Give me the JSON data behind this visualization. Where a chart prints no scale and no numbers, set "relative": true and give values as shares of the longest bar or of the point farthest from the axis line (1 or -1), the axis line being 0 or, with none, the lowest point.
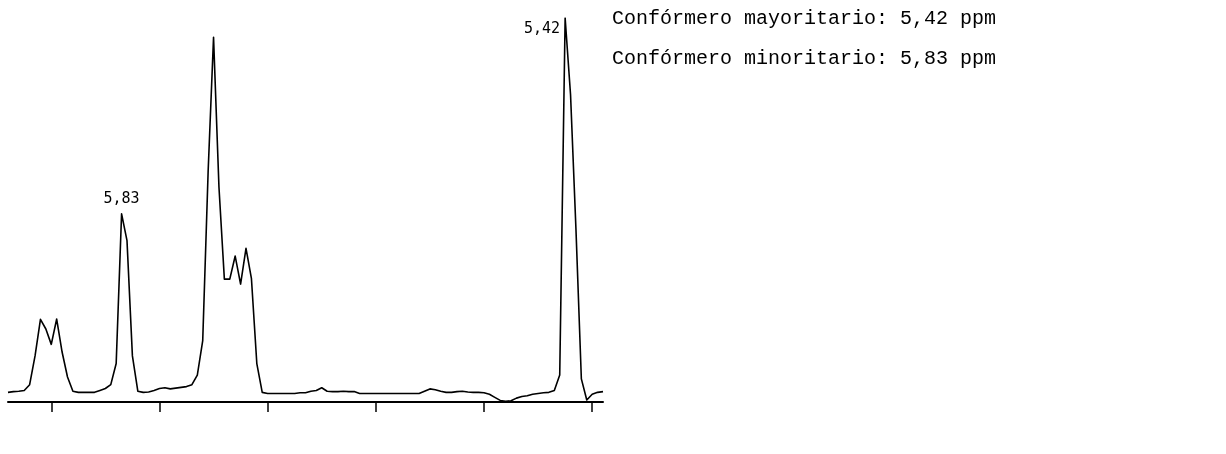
{
  "chart_data": {
    "type": "line",
    "relative": true,
    "categories": [
      null,
      null,
      null,
      null,
      null,
      null,
      null,
      null,
      null,
      null,
      null,
      null,
      null,
      null,
      null,
      null,
      null,
      null,
      null,
      null,
      null,
      null,
      null,
      null,
      null,
      null,
      null,
      null,
      null,
      null,
      null,
      null,
      null,
      null,
      null,
      null,
      null,
      null,
      null,
      null,
      null,
      null,
      null,
      null,
      null,
      null,
      null,
      null,
      null,
      null,
      null,
      null,
      null,
      null,
      null,
      null,
      null,
      null,
      null,
      null,
      null,
      null,
      null,
      null,
      null,
      null,
      null,
      null,
      null,
      null,
      null,
      null,
      null,
      null,
      null,
      null,
      null,
      null,
      null,
      null,
      null,
      null,
      null,
      null,
      null,
      null,
      null,
      null,
      null,
      null,
      null,
      null,
      null,
      null,
      null,
      null,
      null,
      null,
      null,
      null,
      null,
      null,
      null,
      null,
      null,
      null,
      null,
      null,
      null,
      null,
      null
    ],
    "series": [
      {
        "color": "#000000",
        "values": [
          0.025,
          0.027,
          0.028,
          0.03,
          0.045,
          0.12,
          0.215,
          0.19,
          0.15,
          0.216,
          0.13,
          0.065,
          0.028,
          0.025,
          0.025,
          0.025,
          0.025,
          0.03,
          0.035,
          0.045,
          0.1,
          0.49,
          0.42,
          0.12,
          0.028,
          0.025,
          0.026,
          0.03,
          0.035,
          0.037,
          0.034,
          0.036,
          0.038,
          0.04,
          0.045,
          0.07,
          0.16,
          0.6,
          0.95,
          0.56,
          0.32,
          0.32,
          0.38,
          0.307,
          0.4,
          0.322,
          0.1,
          0.025,
          0.022,
          0.022,
          0.022,
          0.022,
          0.022,
          0.022,
          0.024,
          0.024,
          0.028,
          0.03,
          0.037,
          0.028,
          0.027,
          0.027,
          0.028,
          0.027,
          0.027,
          0.022,
          0.022,
          0.022,
          0.022,
          0.022,
          0.022,
          0.022,
          0.022,
          0.022,
          0.022,
          0.022,
          0.022,
          0.028,
          0.034,
          0.032,
          0.028,
          0.025,
          0.025,
          0.027,
          0.028,
          0.026,
          0.025,
          0.025,
          0.024,
          0.02,
          0.012,
          0.004,
          0.002,
          0.003,
          0.01,
          0.014,
          0.016,
          0.02,
          0.022,
          0.024,
          0.025,
          0.03,
          0.07,
          1.0,
          0.8,
          0.45,
          0.06,
          0.005,
          0.02,
          0.025,
          0.027
        ]
      }
    ],
    "annotations": [
      {
        "text": "5,83",
        "y": 0.49
      },
      "5,42",
      "Confórmero mayoritario: 5,42 ppm",
      "Confórmero minoritario: 5,83 ppm"
    ]
  }
}
